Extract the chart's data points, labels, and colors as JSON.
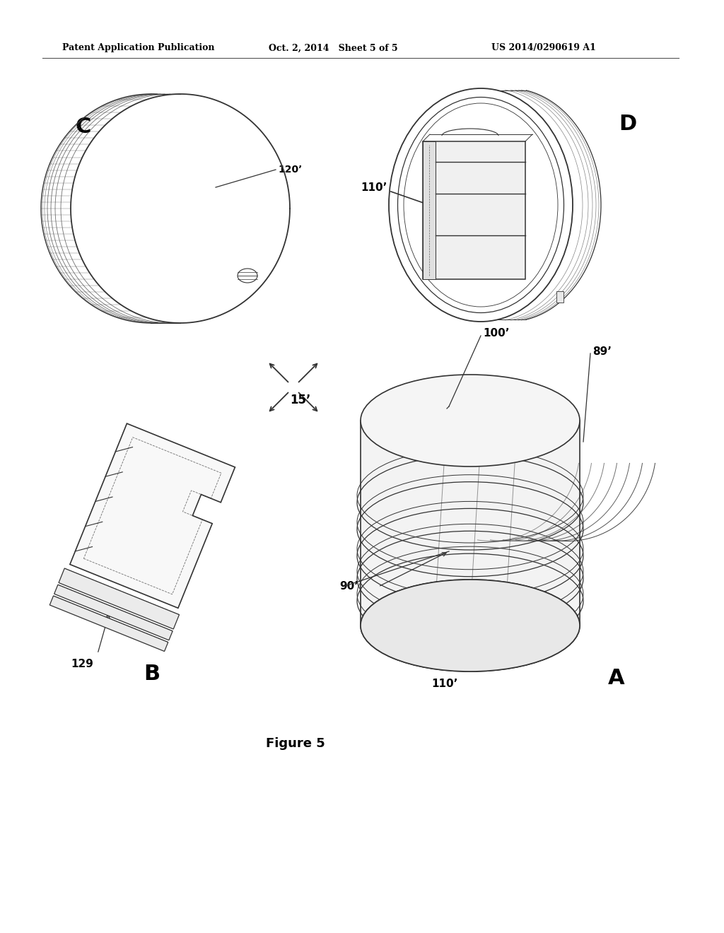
{
  "header_left": "Patent Application Publication",
  "header_mid": "Oct. 2, 2014   Sheet 5 of 5",
  "header_right": "US 2014/0290619 A1",
  "figure_caption": "Figure 5",
  "bg_color": "#ffffff",
  "text_color": "#000000",
  "line_color": "#333333",
  "label_C": "C",
  "label_D": "D",
  "label_A": "A",
  "label_B": "B",
  "ref_120": "120’",
  "ref_110_top": "110’",
  "ref_15": "15’",
  "ref_100": "100’",
  "ref_89": "89’",
  "ref_90": "90’",
  "ref_110_bot": "110’",
  "ref_129": "129"
}
